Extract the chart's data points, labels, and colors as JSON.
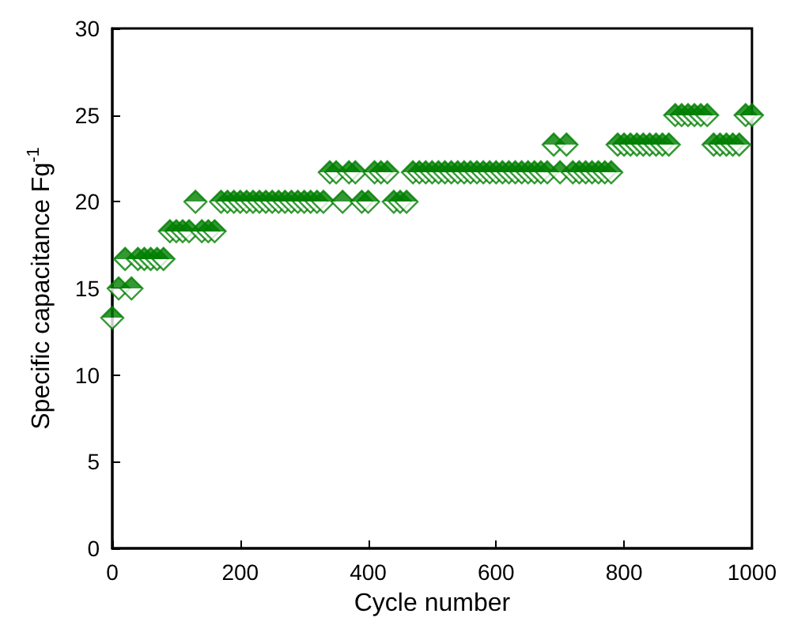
{
  "chart_data": {
    "type": "scatter",
    "xlabel": "Cycle number",
    "ylabel": "Specific capacitance Fg$^{-1}$",
    "x": [
      0,
      10,
      20,
      30,
      40,
      50,
      60,
      70,
      80,
      90,
      100,
      110,
      120,
      130,
      140,
      150,
      160,
      170,
      180,
      190,
      200,
      210,
      220,
      230,
      240,
      250,
      260,
      270,
      280,
      290,
      300,
      310,
      320,
      330,
      340,
      350,
      360,
      370,
      380,
      390,
      400,
      410,
      420,
      430,
      440,
      450,
      460,
      470,
      480,
      490,
      500,
      510,
      520,
      530,
      540,
      550,
      560,
      570,
      580,
      590,
      600,
      610,
      620,
      630,
      640,
      650,
      660,
      670,
      680,
      690,
      700,
      710,
      720,
      730,
      740,
      750,
      760,
      770,
      780,
      790,
      800,
      810,
      820,
      830,
      840,
      850,
      860,
      870,
      880,
      890,
      900,
      910,
      920,
      930,
      940,
      950,
      960,
      970,
      980,
      990,
      1000
    ],
    "series": [
      {
        "color": "#007f00",
        "values": [
          13.3,
          15.0,
          16.7,
          15.0,
          16.7,
          16.7,
          16.7,
          16.7,
          16.7,
          18.3,
          18.3,
          18.3,
          18.3,
          20.0,
          18.3,
          18.3,
          18.3,
          20.0,
          20.0,
          20.0,
          20.0,
          20.0,
          20.0,
          20.0,
          20.0,
          20.0,
          20.0,
          20.0,
          20.0,
          20.0,
          20.0,
          20.0,
          20.0,
          20.0,
          21.7,
          21.7,
          20.0,
          21.7,
          21.7,
          20.0,
          20.0,
          21.7,
          21.7,
          21.7,
          20.0,
          20.0,
          20.0,
          21.7,
          21.7,
          21.7,
          21.7,
          21.7,
          21.7,
          21.7,
          21.7,
          21.7,
          21.7,
          21.7,
          21.7,
          21.7,
          21.7,
          21.7,
          21.7,
          21.7,
          21.7,
          21.7,
          21.7,
          21.7,
          21.7,
          23.3,
          21.7,
          23.3,
          21.7,
          21.7,
          21.7,
          21.7,
          21.7,
          21.7,
          21.7,
          23.3,
          23.3,
          23.3,
          23.3,
          23.3,
          23.3,
          23.3,
          23.3,
          23.3,
          25.0,
          25.0,
          25.0,
          25.0,
          25.0,
          25.0,
          23.3,
          23.3,
          23.3,
          23.3,
          23.3,
          25.0,
          25.0
        ]
      }
    ],
    "xlim": [
      0,
      1000
    ],
    "xticks": [
      0,
      200,
      400,
      600,
      800,
      1000
    ],
    "ylim": [
      0,
      30
    ],
    "yticks": [
      0,
      5,
      10,
      15,
      20,
      25,
      30
    ],
    "grid": false,
    "marker": "diamond"
  }
}
